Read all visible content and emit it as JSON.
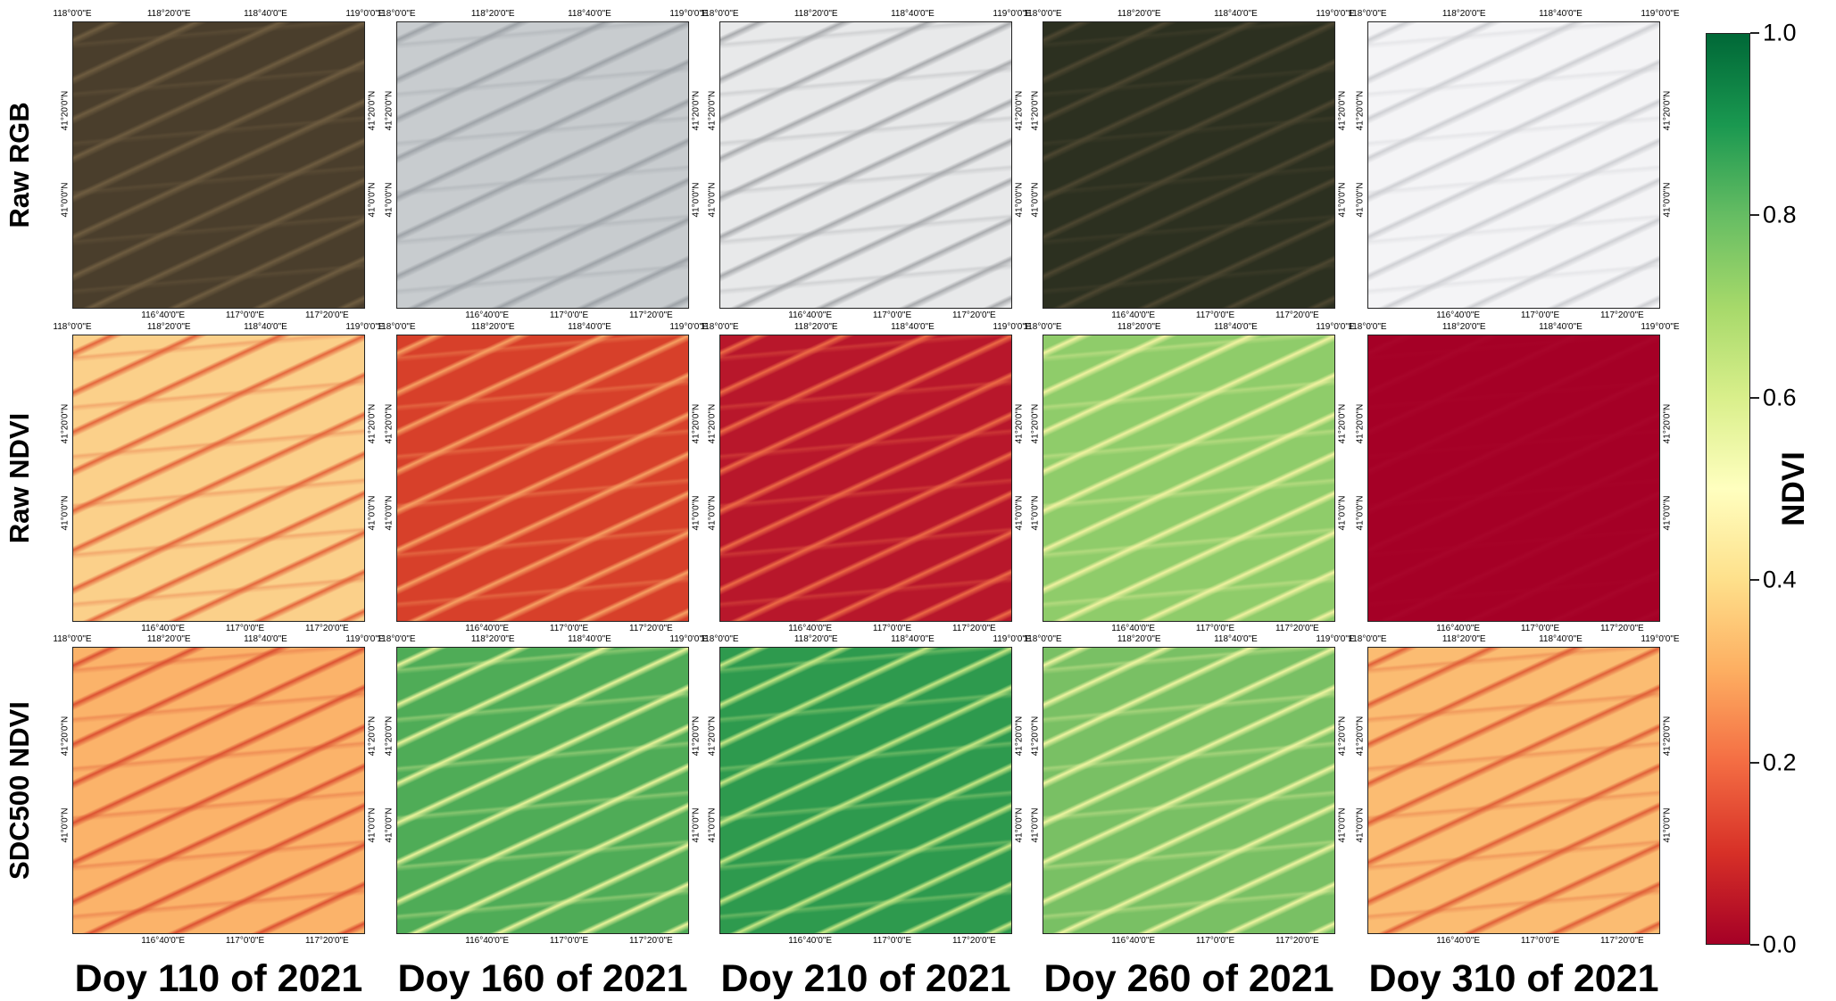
{
  "row_labels": [
    "Raw RGB",
    "Raw NDVI",
    "SDC500 NDVI"
  ],
  "column_labels": [
    "Doy 110 of 2021",
    "Doy 160 of 2021",
    "Doy 210 of 2021",
    "Doy 260 of 2021",
    "Doy 310 of 2021"
  ],
  "top_ticks": [
    "118°0'0\"E",
    "118°20'0\"E",
    "118°40'0\"E",
    "119°0'0\"E"
  ],
  "bottom_ticks": [
    "116°40'0\"E",
    "117°0'0\"E",
    "117°20'0\"E"
  ],
  "lat_ticks": [
    "41°20'0\"N",
    "41°0'0\"N"
  ],
  "colorbar": {
    "title": "NDVI",
    "ticks": [
      "0.0",
      "0.2",
      "0.4",
      "0.6",
      "0.8",
      "1.0"
    ],
    "colors": [
      "#a50026",
      "#d73027",
      "#f46d43",
      "#fdae61",
      "#fee08b",
      "#ffffbf",
      "#d9ef8b",
      "#a6d96a",
      "#66bd63",
      "#1a9850",
      "#006837"
    ]
  },
  "panels": [
    [
      {
        "kind": "rgb",
        "base": "#4a3e2c",
        "streak": "#6e5c40"
      },
      {
        "kind": "cloud",
        "base": "#c8cccf",
        "streak": "#9ea3a8"
      },
      {
        "kind": "cloud",
        "base": "#e8e9ea",
        "streak": "#a9abae"
      },
      {
        "kind": "rgb",
        "base": "#2c3020",
        "streak": "#4c4630"
      },
      {
        "kind": "cloud",
        "base": "#f4f4f6",
        "streak": "#cfd0d4"
      }
    ],
    [
      {
        "kind": "ndvi",
        "base": "#fbd08a",
        "streak": "#e4663c"
      },
      {
        "kind": "ndvi",
        "base": "#d7402a",
        "streak": "#f6a062"
      },
      {
        "kind": "ndvi",
        "base": "#b8172b",
        "streak": "#ec6a45"
      },
      {
        "kind": "ndvi",
        "base": "#8fcc6a",
        "streak": "#f0f2a0"
      },
      {
        "kind": "ndvi",
        "base": "#a50026",
        "streak": "#a8052a"
      }
    ],
    [
      {
        "kind": "ndvi",
        "base": "#fbb36a",
        "streak": "#dc5232"
      },
      {
        "kind": "ndvi",
        "base": "#4fac57",
        "streak": "#e9f39a"
      },
      {
        "kind": "ndvi",
        "base": "#2e9a4e",
        "streak": "#c7e784"
      },
      {
        "kind": "ndvi",
        "base": "#79c064",
        "streak": "#eef4a0"
      },
      {
        "kind": "ndvi",
        "base": "#fbbc72",
        "streak": "#e06038"
      }
    ]
  ]
}
